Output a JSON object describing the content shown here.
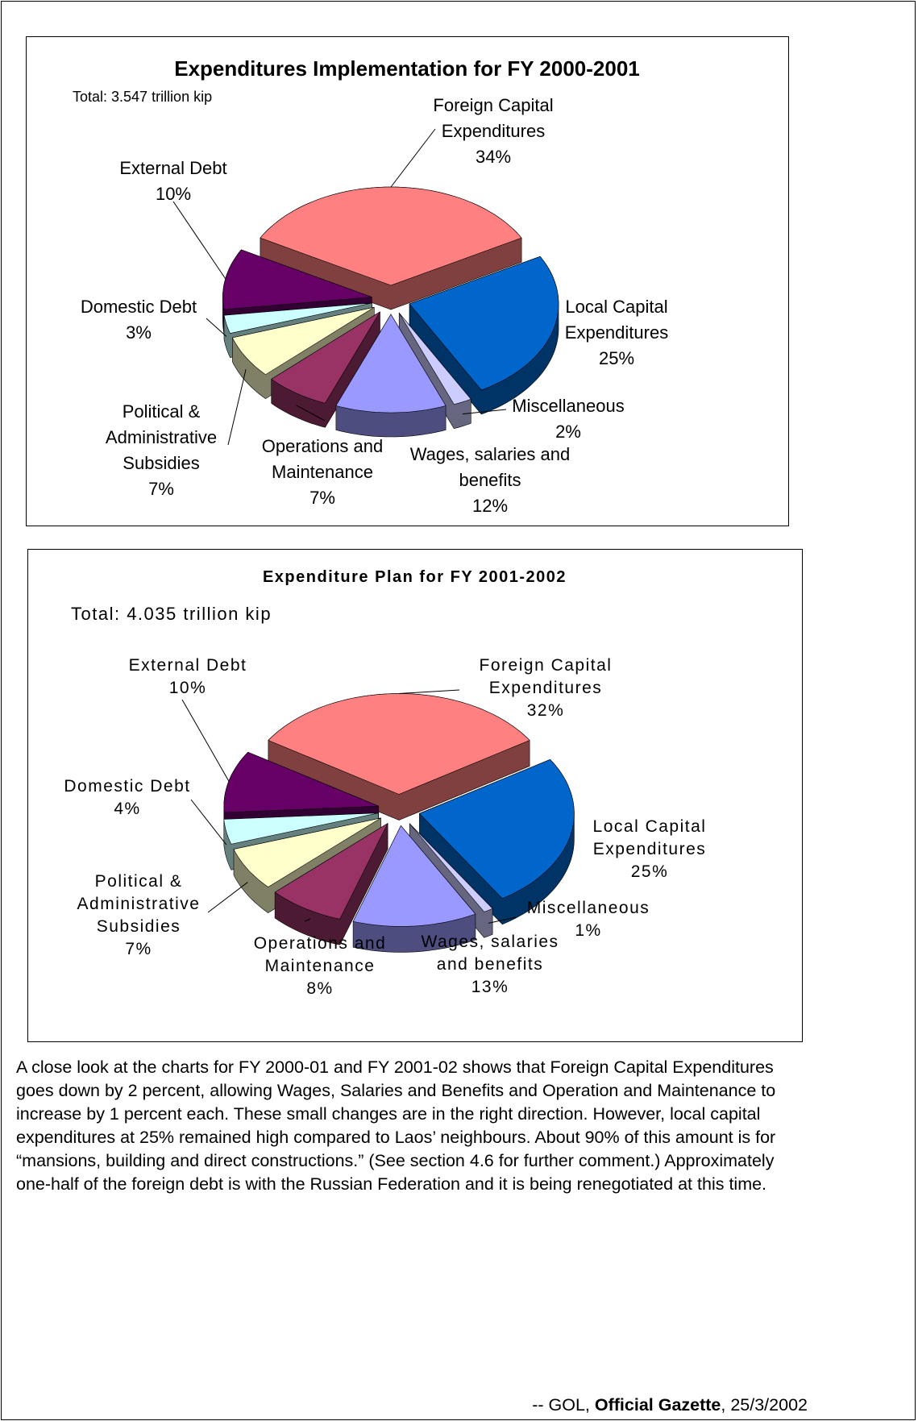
{
  "chart_data": [
    {
      "type": "pie",
      "title": "Expenditures Implementation for FY 2000-2001",
      "subtitle": "Total: 3.547 trillion kip",
      "categories": [
        "Foreign Capital Expenditures",
        "Local Capital Expenditures",
        "Miscellaneous",
        "Wages, salaries and benefits",
        "Operations and Maintenance",
        "Political & Administrative Subsidies",
        "Domestic Debt",
        "External Debt"
      ],
      "values": [
        34,
        25,
        2,
        12,
        7,
        7,
        3,
        10
      ],
      "value_labels": [
        "34%",
        "25%",
        "2%",
        "12%",
        "7%",
        "7%",
        "3%",
        "10%"
      ],
      "colors": [
        "#ff8080",
        "#0066cc",
        "#ccccff",
        "#9999ff",
        "#993366",
        "#ffffcc",
        "#ccffff",
        "#660066"
      ]
    },
    {
      "type": "pie",
      "title": "Expenditure Plan for FY 2001-2002",
      "subtitle": "Total: 4.035 trillion kip",
      "categories": [
        "Foreign Capital Expenditures",
        "Local Capital Expenditures",
        "Miscellaneous",
        "Wages, salaries and benefits",
        "Operations and Maintenance",
        "Political & Administrative Subsidies",
        "Domestic Debt",
        "External Debt"
      ],
      "values": [
        32,
        25,
        1,
        13,
        8,
        7,
        4,
        10
      ],
      "value_labels": [
        "32%",
        "25%",
        "1%",
        "13%",
        "8%",
        "7%",
        "4%",
        "10%"
      ],
      "colors": [
        "#ff8080",
        "#0066cc",
        "#ccccff",
        "#9999ff",
        "#993366",
        "#ffffcc",
        "#ccffff",
        "#660066"
      ]
    }
  ],
  "text": "A close look at the charts for FY 2000-01 and FY 2001-02 shows that Foreign Capital Expenditures goes down by 2 percent, allowing Wages, Salaries and Benefits and Operation and Maintenance to increase by 1 percent each. These small changes are in the right direction. However, local capital expenditures at 25% remained high compared to Laos’ neighbours. About 90% of this amount is for “mansions, building and direct constructions.” (See section 4.6 for further comment.) Approximately one-half of the foreign debt is with the Russian Federation and it is being renegotiated at this time.",
  "source": {
    "prefix": "-- GOL,",
    "title": "Official Gazette",
    "date": ", 25/3/2002"
  }
}
